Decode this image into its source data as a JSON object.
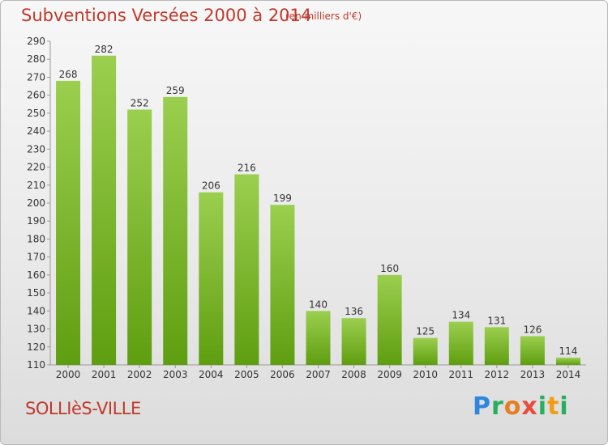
{
  "header": {
    "title": "Subventions Versées 2000 à 2014",
    "subtitle": "(en milliers d'€)"
  },
  "footer": {
    "commune": "SOLLIèS-VILLE",
    "logo_text": "Proxiti"
  },
  "colors": {
    "title": "#c0392b",
    "bar_light": "#9bcf4f",
    "bar_dark": "#5f9e10"
  },
  "chart_data": {
    "type": "bar",
    "categories": [
      "2000",
      "2001",
      "2002",
      "2003",
      "2004",
      "2005",
      "2006",
      "2007",
      "2008",
      "2009",
      "2010",
      "2011",
      "2012",
      "2013",
      "2014"
    ],
    "values": [
      268,
      282,
      252,
      259,
      206,
      216,
      199,
      140,
      136,
      160,
      125,
      134,
      131,
      126,
      114
    ],
    "title": "Subventions Versées 2000 à 2014",
    "ylim": [
      110,
      290
    ],
    "yticks": [
      110,
      120,
      130,
      140,
      150,
      160,
      170,
      180,
      190,
      200,
      210,
      220,
      230,
      240,
      250,
      260,
      270,
      280,
      290
    ],
    "grid": false,
    "legend": "none"
  }
}
